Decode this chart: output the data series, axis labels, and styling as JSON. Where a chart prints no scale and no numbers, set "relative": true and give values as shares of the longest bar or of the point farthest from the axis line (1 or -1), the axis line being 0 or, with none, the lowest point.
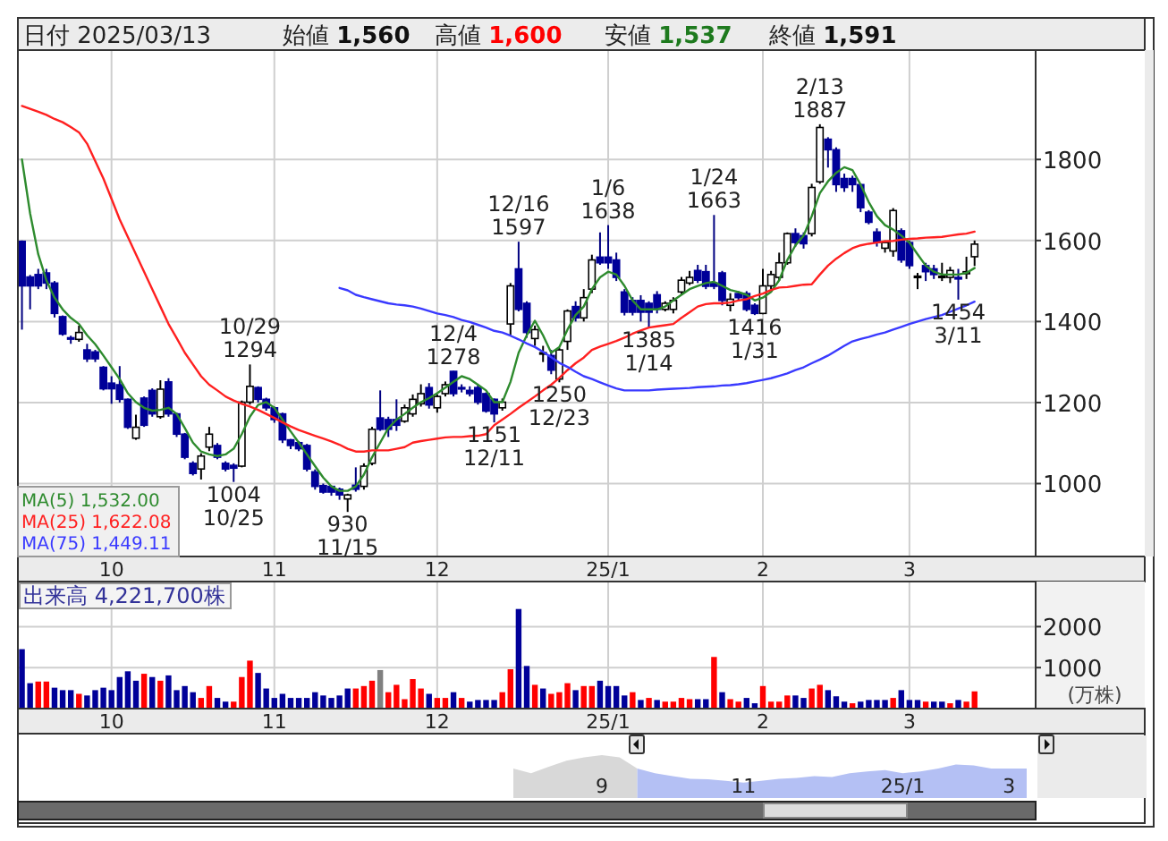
{
  "chart_data": [
    {
      "type": "candlestick",
      "title": "日付 2025/03/13",
      "annotations": [
        "始値 **1,560**",
        "高値 **1,600**",
        "安値 **1,537**",
        "終値 **1,591**",
        {
          "text": "10/29\n1294",
          "y": 1294
        },
        {
          "text": "1004\n10/25",
          "y": 1004
        },
        {
          "text": "930\n11/15",
          "y": 930
        },
        {
          "text": "12/4\n1278",
          "y": 1278
        },
        {
          "text": "1151\n12/11",
          "y": 1151
        },
        {
          "text": "12/16\n1597",
          "y": 1597
        },
        {
          "text": "1250\n12/23",
          "y": 1250
        },
        {
          "text": "1/6\n1638",
          "y": 1638
        },
        {
          "text": "1385\n1/14",
          "y": 1385
        },
        {
          "text": "1/24\n1663",
          "y": 1663
        },
        {
          "text": "1416\n1/31",
          "y": 1416
        },
        {
          "text": "2/13\n1887",
          "y": 1887
        },
        {
          "text": "1454\n3/11",
          "y": 1454
        }
      ],
      "categories": [
        null,
        null,
        null,
        null,
        null,
        null,
        null,
        null,
        null,
        null,
        null,
        "10",
        null,
        null,
        null,
        null,
        null,
        null,
        null,
        null,
        null,
        null,
        null,
        null,
        null,
        null,
        null,
        null,
        null,
        null,
        null,
        "11",
        null,
        null,
        null,
        null,
        null,
        null,
        null,
        null,
        null,
        null,
        null,
        null,
        null,
        null,
        null,
        null,
        null,
        null,
        null,
        "12",
        null,
        null,
        null,
        null,
        null,
        null,
        null,
        null,
        null,
        null,
        null,
        null,
        null,
        null,
        null,
        null,
        null,
        null,
        null,
        null,
        "25/1",
        null,
        null,
        null,
        null,
        null,
        null,
        null,
        null,
        null,
        null,
        null,
        null,
        null,
        null,
        null,
        null,
        null,
        null,
        "2",
        null,
        null,
        null,
        null,
        null,
        null,
        null,
        null,
        null,
        null,
        null,
        null,
        null,
        null,
        null,
        null,
        null,
        "3",
        null,
        null,
        null,
        null,
        null,
        null,
        null,
        null
      ],
      "ohlc": [
        [
          1598,
          1600,
          1380,
          1488
        ],
        [
          1510,
          1515,
          1430,
          1488
        ],
        [
          1516,
          1530,
          1480,
          1488
        ],
        [
          1520,
          1530,
          1480,
          1495
        ],
        [
          1495,
          1500,
          1410,
          1420
        ],
        [
          1412,
          1415,
          1365,
          1369
        ],
        [
          1360,
          1365,
          1345,
          1358
        ],
        [
          1356,
          1390,
          1350,
          1373
        ],
        [
          1330,
          1345,
          1300,
          1308
        ],
        [
          1325,
          1330,
          1300,
          1308
        ],
        [
          1287,
          1290,
          1230,
          1234
        ],
        [
          1248,
          1265,
          1197,
          1234
        ],
        [
          1244,
          1290,
          1200,
          1208
        ],
        [
          1208,
          1210,
          1135,
          1139
        ],
        [
          1112,
          1170,
          1108,
          1139
        ],
        [
          1211,
          1215,
          1140,
          1144
        ],
        [
          1230,
          1235,
          1165,
          1172
        ],
        [
          1165,
          1255,
          1160,
          1233
        ],
        [
          1251,
          1260,
          1165,
          1172
        ],
        [
          1172,
          1175,
          1115,
          1122
        ],
        [
          1122,
          1125,
          1060,
          1065
        ],
        [
          1050,
          1055,
          1020,
          1025
        ],
        [
          1036,
          1075,
          1010,
          1068
        ],
        [
          1090,
          1140,
          1080,
          1122
        ],
        [
          1094,
          1100,
          1060,
          1065
        ],
        [
          1050,
          1055,
          1030,
          1036
        ],
        [
          1045,
          1050,
          1004,
          1038
        ],
        [
          1043,
          1205,
          1040,
          1201
        ],
        [
          1201,
          1294,
          1195,
          1240
        ],
        [
          1237,
          1240,
          1200,
          1208
        ],
        [
          1208,
          1212,
          1180,
          1187
        ],
        [
          1187,
          1190,
          1150,
          1158
        ],
        [
          1172,
          1175,
          1100,
          1108
        ],
        [
          1108,
          1110,
          1085,
          1094
        ],
        [
          1101,
          1105,
          1080,
          1086
        ],
        [
          1094,
          1098,
          1030,
          1036
        ],
        [
          1029,
          1035,
          985,
          993
        ],
        [
          995,
          1000,
          975,
          979
        ],
        [
          993,
          995,
          970,
          979
        ],
        [
          986,
          990,
          960,
          972
        ],
        [
          962,
          975,
          930,
          972
        ],
        [
          996,
          1040,
          980,
          986
        ],
        [
          993,
          1050,
          985,
          1043
        ],
        [
          1050,
          1140,
          1045,
          1134
        ],
        [
          1162,
          1230,
          1130,
          1134
        ],
        [
          1158,
          1165,
          1115,
          1134
        ],
        [
          1158,
          1208,
          1130,
          1144
        ],
        [
          1154,
          1195,
          1150,
          1187
        ],
        [
          1172,
          1220,
          1165,
          1208
        ],
        [
          1197,
          1245,
          1190,
          1222
        ],
        [
          1237,
          1248,
          1185,
          1194
        ],
        [
          1187,
          1220,
          1175,
          1215
        ],
        [
          1222,
          1252,
          1215,
          1244
        ],
        [
          1277,
          1278,
          1215,
          1222
        ],
        [
          1237,
          1245,
          1225,
          1235
        ],
        [
          1230,
          1240,
          1215,
          1222
        ],
        [
          1237,
          1245,
          1195,
          1201
        ],
        [
          1222,
          1225,
          1175,
          1179
        ],
        [
          1208,
          1210,
          1151,
          1172
        ],
        [
          1187,
          1210,
          1180,
          1201
        ],
        [
          1394,
          1495,
          1366,
          1488
        ],
        [
          1530,
          1597,
          1425,
          1430
        ],
        [
          1445,
          1450,
          1360,
          1373
        ],
        [
          1358,
          1390,
          1340,
          1380
        ],
        [
          1323,
          1340,
          1300,
          1323
        ],
        [
          1316,
          1330,
          1270,
          1280
        ],
        [
          1258,
          1335,
          1250,
          1330
        ],
        [
          1351,
          1430,
          1330,
          1426
        ],
        [
          1437,
          1450,
          1400,
          1409
        ],
        [
          1409,
          1480,
          1400,
          1459
        ],
        [
          1480,
          1565,
          1470,
          1552
        ],
        [
          1559,
          1620,
          1540,
          1545
        ],
        [
          1559,
          1638,
          1530,
          1545
        ],
        [
          1552,
          1570,
          1500,
          1509
        ],
        [
          1473,
          1480,
          1415,
          1423
        ],
        [
          1452,
          1460,
          1415,
          1423
        ],
        [
          1452,
          1465,
          1400,
          1423
        ],
        [
          1445,
          1450,
          1385,
          1423
        ],
        [
          1466,
          1475,
          1420,
          1430
        ],
        [
          1430,
          1450,
          1425,
          1445
        ],
        [
          1430,
          1460,
          1420,
          1452
        ],
        [
          1473,
          1510,
          1465,
          1502
        ],
        [
          1495,
          1525,
          1490,
          1509
        ],
        [
          1526,
          1540,
          1495,
          1502
        ],
        [
          1523,
          1540,
          1480,
          1487
        ],
        [
          1495,
          1663,
          1480,
          1487
        ],
        [
          1520,
          1525,
          1440,
          1452
        ],
        [
          1440,
          1470,
          1425,
          1455
        ],
        [
          1469,
          1475,
          1450,
          1459
        ],
        [
          1469,
          1475,
          1425,
          1430
        ],
        [
          1440,
          1445,
          1416,
          1420
        ],
        [
          1420,
          1530,
          1418,
          1488
        ],
        [
          1488,
          1525,
          1480,
          1516
        ],
        [
          1509,
          1570,
          1500,
          1545
        ],
        [
          1545,
          1620,
          1540,
          1617
        ],
        [
          1617,
          1630,
          1585,
          1595
        ],
        [
          1612,
          1620,
          1580,
          1592
        ],
        [
          1617,
          1740,
          1610,
          1731
        ],
        [
          1745,
          1887,
          1740,
          1879
        ],
        [
          1850,
          1855,
          1780,
          1824
        ],
        [
          1824,
          1830,
          1720,
          1738
        ],
        [
          1753,
          1765,
          1720,
          1731
        ],
        [
          1753,
          1760,
          1720,
          1738
        ],
        [
          1738,
          1740,
          1670,
          1681
        ],
        [
          1670,
          1675,
          1640,
          1645
        ],
        [
          1621,
          1630,
          1585,
          1595
        ],
        [
          1581,
          1600,
          1570,
          1595
        ],
        [
          1574,
          1680,
          1560,
          1674
        ],
        [
          1624,
          1630,
          1545,
          1552
        ],
        [
          1595,
          1600,
          1530,
          1538
        ],
        [
          1512,
          1520,
          1480,
          1512
        ],
        [
          1538,
          1545,
          1500,
          1523
        ],
        [
          1530,
          1540,
          1505,
          1516
        ],
        [
          1512,
          1545,
          1500,
          1512
        ],
        [
          1509,
          1535,
          1495,
          1526
        ],
        [
          1509,
          1530,
          1454,
          1505
        ],
        [
          1518,
          1560,
          1505,
          1523
        ],
        [
          1560,
          1600,
          1537,
          1591
        ]
      ],
      "series": [
        {
          "name": "MA(5)  1,532.00",
          "type": "line",
          "color": "#2e8b2e",
          "values": [
            1800,
            1667,
            1566,
            1502,
            1459,
            1430,
            1409,
            1394,
            1366,
            1344,
            1316,
            1287,
            1258,
            1223,
            1201,
            1187,
            1180,
            1182,
            1187,
            1172,
            1137,
            1101,
            1079,
            1072,
            1068,
            1072,
            1086,
            1122,
            1165,
            1194,
            1201,
            1187,
            1158,
            1129,
            1101,
            1072,
            1043,
            1015,
            993,
            982,
            982,
            993,
            1022,
            1065,
            1101,
            1137,
            1158,
            1172,
            1187,
            1201,
            1211,
            1223,
            1237,
            1251,
            1265,
            1258,
            1244,
            1230,
            1201,
            1201,
            1251,
            1323,
            1366,
            1402,
            1366,
            1323,
            1337,
            1380,
            1416,
            1437,
            1480,
            1509,
            1523,
            1516,
            1488,
            1452,
            1430,
            1430,
            1430,
            1437,
            1452,
            1466,
            1480,
            1488,
            1495,
            1498,
            1488,
            1478,
            1473,
            1466,
            1452,
            1459,
            1473,
            1502,
            1552,
            1588,
            1612,
            1660,
            1717,
            1746,
            1767,
            1781,
            1774,
            1738,
            1695,
            1660,
            1638,
            1627,
            1612,
            1595,
            1566,
            1538,
            1523,
            1516,
            1516,
            1516,
            1520,
            1532
          ]
        },
        {
          "name": "MA(25)  1,622.08",
          "type": "line",
          "color": "#ff2020",
          "values": [
            1932,
            1925,
            1918,
            1910,
            1900,
            1892,
            1880,
            1867,
            1839,
            1796,
            1753,
            1703,
            1652,
            1609,
            1566,
            1523,
            1480,
            1437,
            1394,
            1359,
            1323,
            1294,
            1265,
            1244,
            1230,
            1215,
            1205,
            1197,
            1190,
            1182,
            1172,
            1162,
            1151,
            1141,
            1132,
            1125,
            1118,
            1111,
            1104,
            1096,
            1086,
            1079,
            1079,
            1082,
            1082,
            1082,
            1086,
            1090,
            1101,
            1105,
            1108,
            1111,
            1114,
            1115,
            1115,
            1117,
            1118,
            1122,
            1144,
            1158,
            1172,
            1187,
            1201,
            1215,
            1230,
            1244,
            1261,
            1280,
            1297,
            1311,
            1330,
            1338,
            1345,
            1352,
            1360,
            1370,
            1378,
            1385,
            1388,
            1391,
            1394,
            1409,
            1423,
            1437,
            1443,
            1445,
            1445,
            1447,
            1452,
            1455,
            1463,
            1469,
            1478,
            1484,
            1485,
            1488,
            1491,
            1492,
            1516,
            1538,
            1555,
            1569,
            1581,
            1588,
            1592,
            1595,
            1598,
            1599,
            1602,
            1604,
            1605,
            1607,
            1608,
            1609,
            1612,
            1615,
            1617,
            1622
          ]
        },
        {
          "name": "MA(75)  1,449.11",
          "type": "line",
          "color": "#3a3aff",
          "values": [
            null,
            null,
            null,
            null,
            null,
            null,
            null,
            null,
            null,
            null,
            null,
            null,
            null,
            null,
            null,
            null,
            null,
            null,
            null,
            null,
            null,
            null,
            null,
            null,
            null,
            null,
            null,
            null,
            null,
            null,
            null,
            null,
            null,
            null,
            null,
            null,
            null,
            null,
            null,
            1483,
            1477,
            1466,
            1460,
            1455,
            1450,
            1445,
            1442,
            1440,
            1437,
            1432,
            1426,
            1420,
            1416,
            1411,
            1404,
            1399,
            1392,
            1385,
            1377,
            1373,
            1365,
            1356,
            1346,
            1337,
            1325,
            1312,
            1298,
            1288,
            1276,
            1265,
            1258,
            1250,
            1242,
            1235,
            1230,
            1230,
            1230,
            1230,
            1232,
            1233,
            1234,
            1235,
            1236,
            1238,
            1239,
            1240,
            1242,
            1243,
            1245,
            1248,
            1252,
            1256,
            1260,
            1266,
            1272,
            1280,
            1287,
            1297,
            1306,
            1316,
            1328,
            1340,
            1351,
            1357,
            1362,
            1368,
            1373,
            1380,
            1387,
            1394,
            1400,
            1406,
            1411,
            1416,
            1424,
            1432,
            1440,
            1449
          ]
        }
      ],
      "ylim": [
        820,
        2070
      ],
      "yticks": [
        1000,
        1200,
        1400,
        1600,
        1800
      ],
      "grid": true,
      "legend": "bottom left",
      "marker": "none"
    },
    {
      "type": "bar",
      "title": "出来高 4,221,700株",
      "ylabel": "(万株)",
      "categories": [
        null,
        null,
        null,
        null,
        null,
        null,
        null,
        null,
        null,
        null,
        null,
        "10",
        null,
        null,
        null,
        null,
        null,
        null,
        null,
        null,
        null,
        null,
        null,
        null,
        null,
        null,
        null,
        null,
        null,
        null,
        null,
        "11",
        null,
        null,
        null,
        null,
        null,
        null,
        null,
        null,
        null,
        null,
        null,
        null,
        null,
        null,
        null,
        null,
        null,
        null,
        null,
        "12",
        null,
        null,
        null,
        null,
        null,
        null,
        null,
        null,
        null,
        null,
        null,
        null,
        null,
        null,
        null,
        null,
        null,
        null,
        null,
        null,
        "25/1",
        null,
        null,
        null,
        null,
        null,
        null,
        null,
        null,
        null,
        null,
        null,
        null,
        null,
        null,
        null,
        null,
        null,
        null,
        "2",
        null,
        null,
        null,
        null,
        null,
        null,
        null,
        null,
        null,
        null,
        null,
        null,
        null,
        null,
        null,
        null,
        null,
        "3",
        null,
        null,
        null,
        null,
        null,
        null,
        null,
        null
      ],
      "values": [
        1450,
        620,
        660,
        660,
        510,
        450,
        450,
        360,
        320,
        450,
        510,
        450,
        770,
        910,
        680,
        850,
        770,
        680,
        810,
        450,
        550,
        400,
        260,
        550,
        260,
        170,
        170,
        770,
        1170,
        870,
        490,
        260,
        360,
        260,
        260,
        260,
        400,
        320,
        260,
        320,
        490,
        490,
        550,
        680,
        940,
        400,
        580,
        230,
        720,
        490,
        360,
        260,
        260,
        400,
        260,
        170,
        210,
        210,
        210,
        400,
        960,
        2430,
        1040,
        580,
        490,
        360,
        400,
        620,
        450,
        550,
        550,
        680,
        550,
        550,
        320,
        400,
        210,
        260,
        210,
        170,
        170,
        260,
        230,
        230,
        230,
        1260,
        400,
        230,
        170,
        260,
        130,
        550,
        170,
        170,
        320,
        320,
        260,
        490,
        580,
        450,
        300,
        170,
        130,
        170,
        210,
        210,
        210,
        260,
        450,
        210,
        210,
        170,
        170,
        170,
        130,
        210,
        170,
        420
      ],
      "colors": [
        "#000099",
        "#000099",
        "#ff0000",
        "#ff0000",
        "#000099",
        "#000099",
        "#000099",
        "#ff0000",
        "#000099",
        "#000099",
        "#000099",
        "#000099",
        "#000099",
        "#000099",
        "#000099",
        "#ff0000",
        "#000099",
        "#ff0000",
        "#000099",
        "#000099",
        "#000099",
        "#000099",
        "#ff0000",
        "#ff0000",
        "#000099",
        "#000099",
        "#ff0000",
        "#ff0000",
        "#ff0000",
        "#000099",
        "#000099",
        "#000099",
        "#000099",
        "#000099",
        "#000099",
        "#000099",
        "#000099",
        "#000099",
        "#000099",
        "#000099",
        "#000099",
        "#ff0000",
        "#ff0000",
        "#ff0000",
        "#808080",
        "#ff0000",
        "#ff0000",
        "#ff0000",
        "#ff0000",
        "#ff0000",
        "#000099",
        "#ff0000",
        "#ff0000",
        "#000099",
        "#ff0000",
        "#000099",
        "#000099",
        "#000099",
        "#000099",
        "#ff0000",
        "#ff0000",
        "#000099",
        "#000099",
        "#ff0000",
        "#000099",
        "#ff0000",
        "#ff0000",
        "#ff0000",
        "#000099",
        "#ff0000",
        "#ff0000",
        "#000099",
        "#000099",
        "#000099",
        "#000099",
        "#ff0000",
        "#000099",
        "#ff0000",
        "#000099",
        "#ff0000",
        "#ff0000",
        "#ff0000",
        "#ff0000",
        "#000099",
        "#000099",
        "#ff0000",
        "#000099",
        "#ff0000",
        "#ff0000",
        "#000099",
        "#000099",
        "#ff0000",
        "#ff0000",
        "#ff0000",
        "#ff0000",
        "#000099",
        "#000099",
        "#ff0000",
        "#ff0000",
        "#000099",
        "#000099",
        "#000099",
        "#ff0000",
        "#000099",
        "#000099",
        "#000099",
        "#000099",
        "#ff0000",
        "#000099",
        "#000099",
        "#000099",
        "#ff0000",
        "#000099",
        "#000099",
        "#ff0000",
        "#000099",
        "#ff0000",
        "#ff0000"
      ],
      "ylim": [
        0,
        3100
      ],
      "yticks": [
        1000,
        2000
      ],
      "grid": true
    },
    {
      "type": "area",
      "relative": true,
      "categories": [
        null,
        null,
        null,
        null,
        null,
        "9",
        null,
        null,
        null,
        null,
        null,
        null,
        null,
        "11",
        null,
        null,
        null,
        null,
        null,
        null,
        null,
        null,
        "25/1",
        null,
        null,
        null,
        null,
        null,
        "3",
        null
      ],
      "series": [
        {
          "color": "#d8d8d8",
          "values": [
            0.69,
            0.58,
            0.73,
            0.87,
            0.95,
            1,
            0.95,
            0.69,
            null,
            null,
            null,
            null,
            null,
            null,
            null,
            null,
            null,
            null,
            null,
            null,
            null,
            null,
            null,
            null,
            null,
            null,
            null,
            null,
            null,
            null
          ]
        },
        {
          "color": "#b4c0f4",
          "values": [
            null,
            null,
            null,
            null,
            null,
            null,
            null,
            0.69,
            0.58,
            0.51,
            0.45,
            0.44,
            0.4,
            0.36,
            0.4,
            0.45,
            0.47,
            0.51,
            0.49,
            0.58,
            0.62,
            0.65,
            0.58,
            0.62,
            0.69,
            0.78,
            0.76,
            0.69,
            0.69,
            0.69
          ]
        }
      ]
    }
  ]
}
